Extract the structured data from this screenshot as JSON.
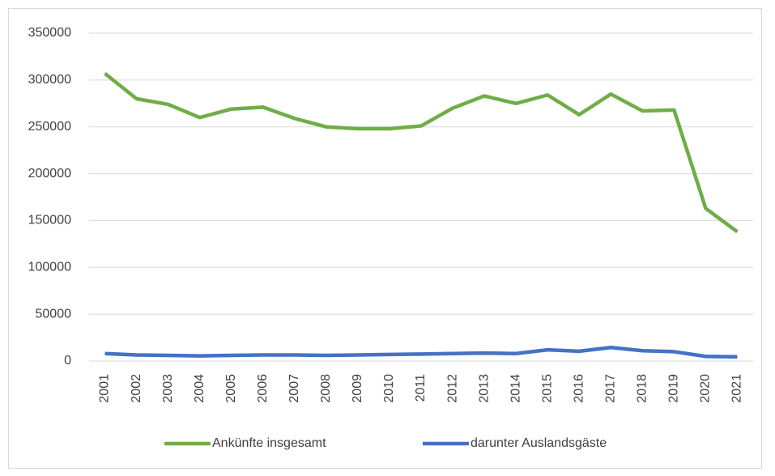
{
  "chart_data": {
    "type": "line",
    "categories": [
      "2001",
      "2002",
      "2003",
      "2004",
      "2005",
      "2006",
      "2007",
      "2008",
      "2009",
      "2010",
      "2011",
      "2012",
      "2013",
      "2014",
      "2015",
      "2016",
      "2017",
      "2018",
      "2019",
      "2020",
      "2021"
    ],
    "series": [
      {
        "name": "Ankünfte insgesamt",
        "color": "#70ad47",
        "values": [
          307000,
          280000,
          274000,
          260000,
          269000,
          271000,
          259000,
          250000,
          248000,
          248000,
          251000,
          270000,
          283000,
          275000,
          284000,
          263000,
          285000,
          267000,
          268000,
          163000,
          138000
        ]
      },
      {
        "name": "darunter Auslandsgäste",
        "color": "#4472c4",
        "values": [
          8000,
          6500,
          6000,
          5500,
          6000,
          6500,
          6500,
          6000,
          6500,
          7000,
          7500,
          8000,
          8500,
          8000,
          12000,
          10500,
          14500,
          11000,
          10000,
          5000,
          4500
        ]
      }
    ],
    "ylim": [
      0,
      350000
    ],
    "yticks": [
      0,
      50000,
      100000,
      150000,
      200000,
      250000,
      300000,
      350000
    ],
    "grid": true,
    "legend": "bottom"
  }
}
